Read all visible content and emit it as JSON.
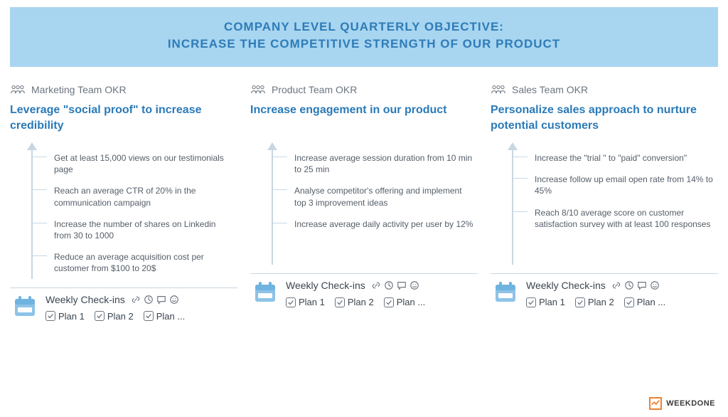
{
  "colors": {
    "header_bg": "#a8d5f0",
    "header_text": "#2e7cb8",
    "objective_text": "#2a7ab8",
    "team_label": "#6b7580",
    "kr_text": "#555e68",
    "arrow": "#c7d7e2",
    "calendar_fill": "#8ec3e8",
    "logo_accent": "#f08030"
  },
  "header": {
    "line1": "COMPANY LEVEL QUARTERLY OBJECTIVE:",
    "line2": "INCREASE THE COMPETITIVE STRENGTH OF OUR PRODUCT"
  },
  "checkin_label": "Weekly Check-ins",
  "plan_labels": [
    "Plan 1",
    "Plan 2",
    "Plan ..."
  ],
  "columns": [
    {
      "team": "Marketing Team OKR",
      "objective": "Leverage \"social proof\" to increase credibility",
      "krs": [
        "Get at least 15,000 views on our testimonials page",
        "Reach an average CTR of 20% in the communication campaign",
        "Increase the number of shares on Linkedin from 30 to 1000",
        "Reduce an average acquisition cost per customer from $100 to 20$"
      ]
    },
    {
      "team": "Product Team OKR",
      "objective": "Increase engagement in our product",
      "krs": [
        "Increase average session duration from 10 min to 25 min",
        "Analyse competitor's offering and implement top 3 improvement ideas",
        "Increase average daily activity per user by 12%"
      ]
    },
    {
      "team": "Sales Team OKR",
      "objective": "Personalize sales approach to nurture potential customers",
      "krs": [
        "Increase the \"trial \" to \"paid\" conversion\"",
        "Increase follow up email open rate from 14% to 45%",
        "Reach 8/10 average score on customer satisfaction survey with at least 100 responses"
      ]
    }
  ],
  "footer": {
    "brand": "WEEKDONE"
  }
}
